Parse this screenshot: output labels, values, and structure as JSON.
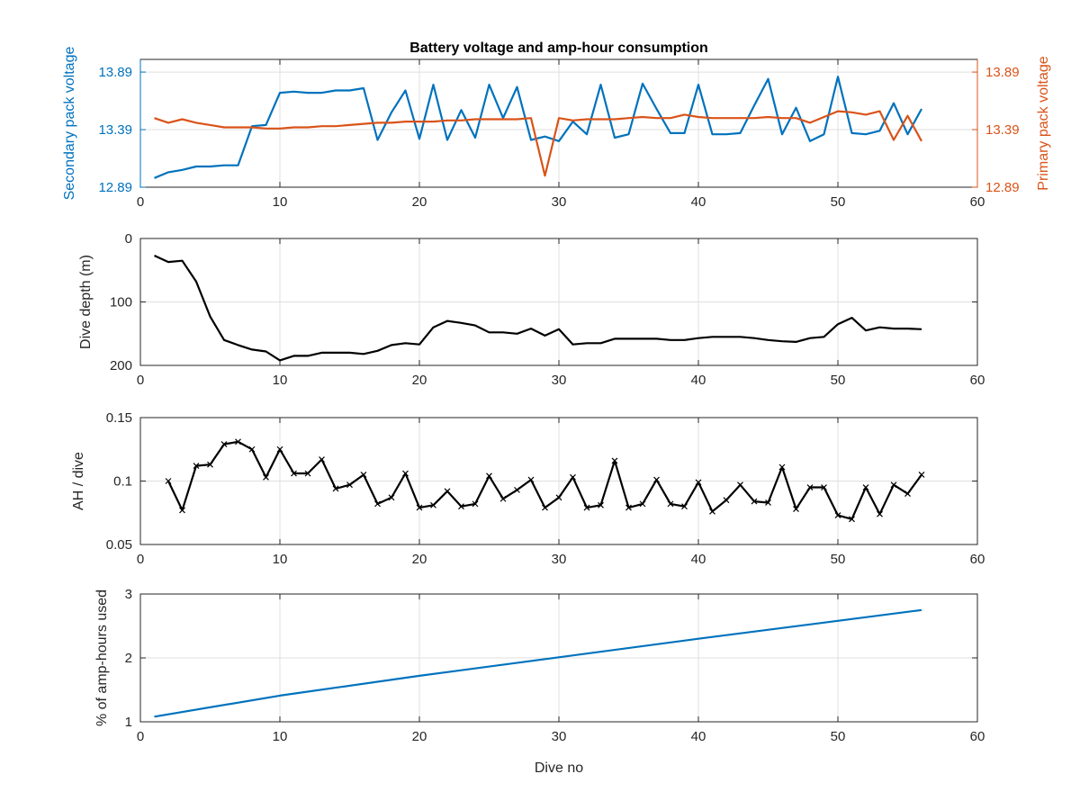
{
  "figure": {
    "title": "Battery voltage and amp-hour consumption",
    "xlabel": "Dive no",
    "colors": {
      "blue": "#0072bd",
      "orange": "#d95319",
      "black": "#000000",
      "grid": "#dfdfdf",
      "axis": "#262626"
    }
  },
  "chart_data": [
    {
      "type": "line",
      "title": "Battery voltage and amp-hour consumption",
      "xlabel": "",
      "ylabel": "Secondary pack voltage",
      "y2label": "Primary pack voltage",
      "xlim": [
        0,
        60
      ],
      "ylim": [
        12.89,
        14.0
      ],
      "y2lim": [
        12.89,
        14.0
      ],
      "xticks": [
        0,
        10,
        20,
        30,
        40,
        50,
        60
      ],
      "yticks": [
        12.89,
        13.39,
        13.89
      ],
      "y2ticks": [
        12.89,
        13.39,
        13.89
      ],
      "grid": true,
      "series": [
        {
          "name": "Secondary pack voltage",
          "axis": "left",
          "color": "#0072bd",
          "x": [
            1,
            2,
            3,
            4,
            5,
            6,
            7,
            8,
            9,
            10,
            11,
            12,
            13,
            14,
            15,
            16,
            17,
            18,
            19,
            20,
            21,
            22,
            23,
            24,
            25,
            26,
            27,
            28,
            29,
            30,
            31,
            32,
            33,
            34,
            35,
            36,
            37,
            38,
            39,
            40,
            41,
            42,
            43,
            44,
            45,
            46,
            47,
            48,
            49,
            50,
            51,
            52,
            53,
            54,
            55,
            56
          ],
          "values": [
            12.97,
            13.02,
            13.04,
            13.07,
            13.07,
            13.08,
            13.08,
            13.42,
            13.43,
            13.71,
            13.72,
            13.71,
            13.71,
            13.73,
            13.73,
            13.75,
            13.3,
            13.54,
            13.73,
            13.31,
            13.78,
            13.3,
            13.56,
            13.32,
            13.78,
            13.49,
            13.76,
            13.3,
            13.33,
            13.29,
            13.46,
            13.35,
            13.78,
            13.32,
            13.35,
            13.79,
            13.57,
            13.36,
            13.36,
            13.78,
            13.35,
            13.35,
            13.36,
            13.6,
            13.83,
            13.35,
            13.58,
            13.29,
            13.35,
            13.85,
            13.36,
            13.35,
            13.38,
            13.62,
            13.35,
            13.57
          ]
        },
        {
          "name": "Primary pack voltage",
          "axis": "right",
          "color": "#d95319",
          "x": [
            1,
            2,
            3,
            4,
            5,
            6,
            7,
            8,
            9,
            10,
            11,
            12,
            13,
            14,
            15,
            16,
            17,
            18,
            19,
            20,
            21,
            22,
            23,
            24,
            25,
            26,
            27,
            28,
            29,
            30,
            31,
            32,
            33,
            34,
            35,
            36,
            37,
            38,
            39,
            40,
            41,
            42,
            43,
            44,
            45,
            46,
            47,
            48,
            49,
            50,
            51,
            52,
            53,
            54,
            55,
            56
          ],
          "values": [
            13.49,
            13.45,
            13.48,
            13.45,
            13.43,
            13.41,
            13.41,
            13.41,
            13.4,
            13.4,
            13.41,
            13.41,
            13.42,
            13.42,
            13.43,
            13.44,
            13.45,
            13.45,
            13.46,
            13.46,
            13.46,
            13.47,
            13.47,
            13.48,
            13.48,
            13.48,
            13.48,
            13.49,
            12.99,
            13.49,
            13.47,
            13.48,
            13.48,
            13.48,
            13.49,
            13.5,
            13.49,
            13.49,
            13.52,
            13.5,
            13.49,
            13.49,
            13.49,
            13.49,
            13.5,
            13.49,
            13.49,
            13.45,
            13.5,
            13.55,
            13.54,
            13.52,
            13.55,
            13.3,
            13.51,
            13.29
          ]
        }
      ]
    },
    {
      "type": "line",
      "title": "",
      "xlabel": "",
      "ylabel": "Dive depth (m)",
      "xlim": [
        0,
        60
      ],
      "ylim": [
        0,
        200
      ],
      "y_reversed": true,
      "xticks": [
        0,
        10,
        20,
        30,
        40,
        50,
        60
      ],
      "yticks": [
        0,
        100,
        200
      ],
      "grid": true,
      "series": [
        {
          "color": "#000000",
          "x": [
            1,
            2,
            3,
            4,
            5,
            6,
            7,
            8,
            9,
            10,
            11,
            12,
            13,
            14,
            15,
            16,
            17,
            18,
            19,
            20,
            21,
            22,
            23,
            24,
            25,
            26,
            27,
            28,
            29,
            30,
            31,
            32,
            33,
            34,
            35,
            36,
            37,
            38,
            39,
            40,
            41,
            42,
            43,
            44,
            45,
            46,
            47,
            48,
            49,
            50,
            51,
            52,
            53,
            54,
            55,
            56
          ],
          "values": [
            27,
            37,
            35,
            68,
            123,
            160,
            168,
            175,
            178,
            192,
            185,
            185,
            180,
            180,
            180,
            182,
            177,
            168,
            165,
            167,
            140,
            130,
            133,
            137,
            148,
            148,
            150,
            142,
            153,
            143,
            167,
            165,
            165,
            158,
            158,
            158,
            158,
            160,
            160,
            157,
            155,
            155,
            155,
            157,
            160,
            162,
            163,
            157,
            155,
            135,
            125,
            145,
            140,
            142,
            142,
            143
          ]
        }
      ]
    },
    {
      "type": "line",
      "title": "",
      "xlabel": "",
      "ylabel": "AH / dive",
      "xlim": [
        0,
        60
      ],
      "ylim": [
        0.05,
        0.15
      ],
      "xticks": [
        0,
        10,
        20,
        30,
        40,
        50,
        60
      ],
      "yticks": [
        0.05,
        0.1,
        0.15
      ],
      "grid": true,
      "marker": "x",
      "series": [
        {
          "color": "#000000",
          "x": [
            2,
            3,
            4,
            5,
            6,
            7,
            8,
            9,
            10,
            11,
            12,
            13,
            14,
            15,
            16,
            17,
            18,
            19,
            20,
            21,
            22,
            23,
            24,
            25,
            26,
            27,
            28,
            29,
            30,
            31,
            32,
            33,
            34,
            35,
            36,
            37,
            38,
            39,
            40,
            41,
            42,
            43,
            44,
            45,
            46,
            47,
            48,
            49,
            50,
            51,
            52,
            53,
            54,
            55,
            56
          ],
          "values": [
            0.1,
            0.077,
            0.112,
            0.113,
            0.129,
            0.131,
            0.125,
            0.103,
            0.125,
            0.106,
            0.106,
            0.117,
            0.094,
            0.097,
            0.105,
            0.082,
            0.087,
            0.106,
            0.079,
            0.081,
            0.092,
            0.08,
            0.082,
            0.104,
            0.086,
            0.093,
            0.101,
            0.079,
            0.087,
            0.103,
            0.079,
            0.081,
            0.116,
            0.079,
            0.082,
            0.101,
            0.082,
            0.08,
            0.099,
            0.076,
            0.085,
            0.097,
            0.084,
            0.083,
            0.111,
            0.078,
            0.095,
            0.095,
            0.073,
            0.07,
            0.095,
            0.074,
            0.097,
            0.09,
            0.105
          ]
        }
      ]
    },
    {
      "type": "line",
      "title": "",
      "xlabel": "Dive no",
      "ylabel": "% of amp-hours used",
      "xlim": [
        0,
        60
      ],
      "ylim": [
        1,
        3
      ],
      "xticks": [
        0,
        10,
        20,
        30,
        40,
        50,
        60
      ],
      "yticks": [
        1,
        2,
        3
      ],
      "grid": true,
      "series": [
        {
          "color": "#0072bd",
          "x": [
            1,
            10,
            20,
            30,
            40,
            50,
            56
          ],
          "values": [
            1.08,
            1.41,
            1.72,
            2.01,
            2.3,
            2.58,
            2.75
          ]
        }
      ]
    }
  ]
}
